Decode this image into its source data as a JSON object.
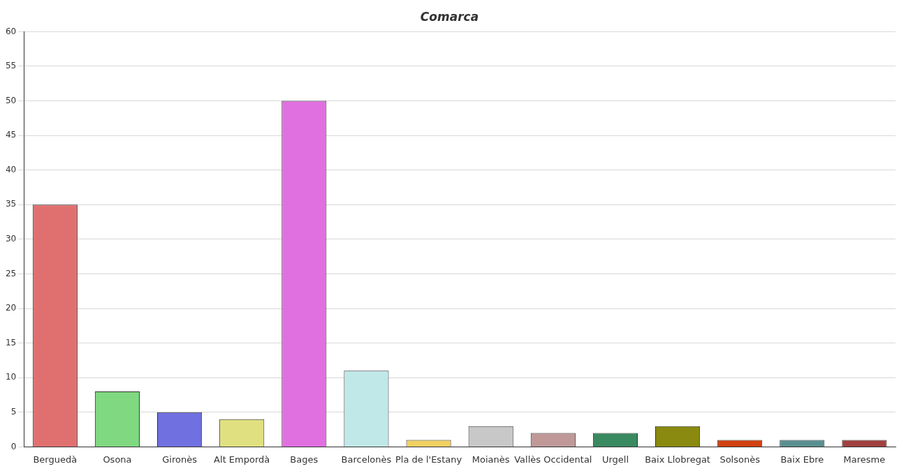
{
  "chart_data": {
    "type": "bar",
    "title": "Comarca",
    "categories": [
      "Berguedà",
      "Osona",
      "Gironès",
      "Alt Empordà",
      "Bages",
      "Barcelonès",
      "Pla de l'Estany",
      "Moianès",
      "Vallès Occidental",
      "Urgell",
      "Baix Llobregat",
      "Solsonès",
      "Baix Ebre",
      "Maresme"
    ],
    "values": [
      35,
      8,
      5,
      4,
      50,
      11,
      1,
      3,
      2,
      2,
      3,
      1,
      1,
      1
    ],
    "colors": [
      "#e07070",
      "#80d880",
      "#7070e0",
      "#e0e080",
      "#e070e0",
      "#c0e8e8",
      "#f0d060",
      "#c8c8c8",
      "#c09898",
      "#3a8a60",
      "#8a8a10",
      "#d04010",
      "#5a9090",
      "#a04040"
    ],
    "ylim": [
      0,
      60
    ],
    "yticks": [
      0,
      5,
      10,
      15,
      20,
      25,
      30,
      35,
      40,
      45,
      50,
      55,
      60
    ],
    "grid": "y",
    "legend": false
  }
}
